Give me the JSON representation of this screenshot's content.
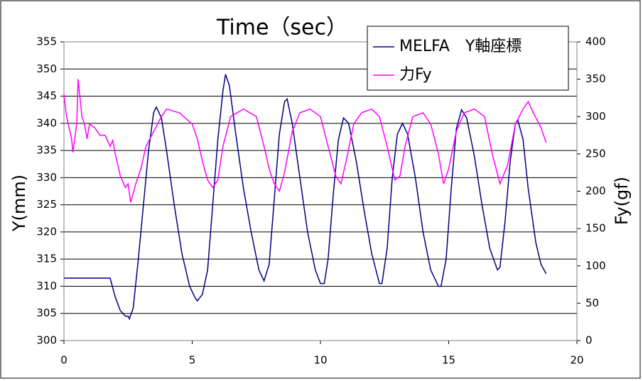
{
  "chart_data": {
    "type": "line",
    "title": "Time（sec）",
    "y_label": "Y(mm)",
    "y2_label": "Fy(gf)",
    "xlim": [
      0,
      20
    ],
    "xticks": [
      0,
      5,
      10,
      15,
      20
    ],
    "ylim": [
      300,
      355
    ],
    "yticks": [
      300,
      305,
      310,
      315,
      320,
      325,
      330,
      335,
      340,
      345,
      350,
      355
    ],
    "y2lim": [
      0,
      400
    ],
    "y2ticks": [
      0,
      50,
      100,
      150,
      200,
      250,
      300,
      350,
      400
    ],
    "grid": true,
    "legend": "upper right",
    "series": [
      {
        "name": "MELFA　Y軸座標",
        "color": "#00007f",
        "x": [
          0,
          1.8,
          2.0,
          2.2,
          2.4,
          2.5,
          2.55,
          2.7,
          2.9,
          3.1,
          3.3,
          3.5,
          3.6,
          3.8,
          4.0,
          4.3,
          4.6,
          4.9,
          5.1,
          5.2,
          5.4,
          5.6,
          5.8,
          6.0,
          6.2,
          6.3,
          6.45,
          6.7,
          7.0,
          7.3,
          7.6,
          7.8,
          8.0,
          8.2,
          8.4,
          8.6,
          8.7,
          8.9,
          9.2,
          9.5,
          9.8,
          10.0,
          10.15,
          10.3,
          10.5,
          10.7,
          10.9,
          11.1,
          11.4,
          11.7,
          12.0,
          12.3,
          12.4,
          12.6,
          12.8,
          13.0,
          13.2,
          13.4,
          13.7,
          14.0,
          14.3,
          14.6,
          14.7,
          14.9,
          15.1,
          15.3,
          15.5,
          15.7,
          16.0,
          16.3,
          16.6,
          16.9,
          17.0,
          17.2,
          17.4,
          17.6,
          17.7,
          17.9,
          18.1,
          18.4,
          18.6,
          18.8
        ],
        "values": [
          311.5,
          311.5,
          308,
          305.5,
          304.5,
          304.5,
          304,
          306,
          315,
          325,
          335,
          342,
          343,
          341,
          335,
          325,
          316,
          310,
          308,
          307.3,
          308.5,
          313,
          325,
          337,
          346,
          349,
          347,
          338,
          328,
          320,
          313,
          311,
          314,
          326,
          338,
          344,
          344.5,
          340,
          330,
          320,
          313,
          310.5,
          310.5,
          315,
          327,
          337,
          341,
          340,
          333,
          324,
          316,
          310.5,
          310.5,
          317,
          330,
          338,
          340,
          338,
          330,
          320,
          313,
          310,
          310,
          315,
          328,
          339,
          342.5,
          341,
          334,
          325,
          317,
          313,
          313.5,
          322,
          333,
          340,
          340.5,
          337,
          328,
          318,
          314,
          312.3
        ]
      },
      {
        "name": "力Fy",
        "color": "#ff00ff",
        "axis": "y2",
        "x": [
          0,
          0.1,
          0.3,
          0.35,
          0.5,
          0.55,
          0.7,
          0.8,
          0.9,
          1.0,
          1.2,
          1.4,
          1.6,
          1.8,
          1.9,
          2.0,
          2.2,
          2.4,
          2.5,
          2.6,
          2.8,
          3.0,
          3.2,
          3.5,
          3.8,
          4.0,
          4.5,
          5.0,
          5.2,
          5.4,
          5.6,
          5.8,
          6.0,
          6.2,
          6.5,
          7.0,
          7.5,
          7.8,
          8.0,
          8.2,
          8.4,
          8.6,
          8.9,
          9.2,
          9.6,
          10.0,
          10.3,
          10.6,
          10.8,
          11.0,
          11.3,
          11.6,
          12.0,
          12.3,
          12.6,
          12.9,
          13.1,
          13.3,
          13.6,
          14.0,
          14.3,
          14.6,
          14.8,
          15.0,
          15.3,
          15.6,
          16.0,
          16.4,
          16.7,
          17.0,
          17.3,
          17.6,
          17.9,
          18.1,
          18.3,
          18.6,
          18.8
        ],
        "values": [
          330,
          300,
          270,
          252,
          290,
          350,
          300,
          290,
          270,
          290,
          285,
          275,
          275,
          260,
          268,
          250,
          220,
          205,
          210,
          185,
          210,
          230,
          260,
          280,
          300,
          310,
          305,
          290,
          270,
          240,
          215,
          205,
          215,
          260,
          300,
          310,
          300,
          260,
          230,
          210,
          200,
          225,
          280,
          305,
          310,
          300,
          260,
          220,
          210,
          240,
          290,
          305,
          310,
          300,
          260,
          215,
          220,
          260,
          300,
          305,
          290,
          250,
          210,
          230,
          280,
          305,
          310,
          300,
          250,
          210,
          235,
          290,
          310,
          320,
          305,
          285,
          265
        ]
      }
    ]
  }
}
